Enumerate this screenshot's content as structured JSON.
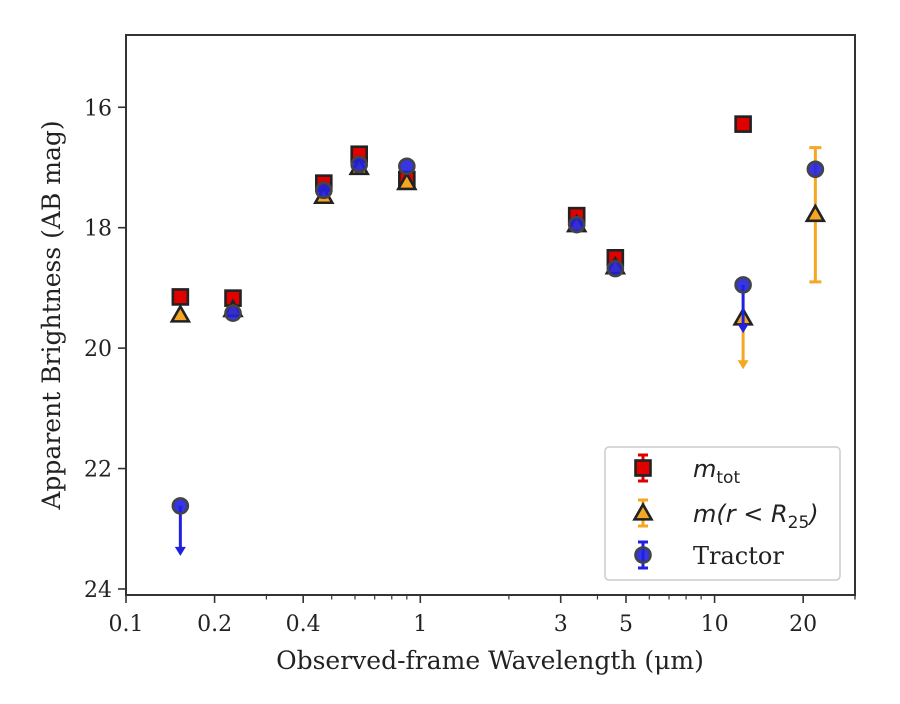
{
  "chart_data": {
    "type": "scatter",
    "title": "",
    "xlabel": "Observed-frame Wavelength (μm)",
    "ylabel": "Apparent Brightness (AB mag)",
    "x_scale": "log",
    "y_inverted": true,
    "xlim": [
      0.1,
      30
    ],
    "ylim": [
      24.1,
      14.8
    ],
    "x_ticks": [
      0.1,
      0.2,
      0.4,
      1,
      3,
      5,
      10,
      20
    ],
    "x_tick_labels": [
      "0.1",
      "0.2",
      "0.4",
      "1",
      "3",
      "5",
      "10",
      "20"
    ],
    "y_ticks": [
      16,
      18,
      20,
      22,
      24
    ],
    "y_tick_labels": [
      "16",
      "18",
      "20",
      "22",
      "24"
    ],
    "grid": false,
    "legend_position": "bottom-right",
    "legend": [
      {
        "label_main": "m",
        "label_sub": "tot",
        "color": "#e00000",
        "marker": "square"
      },
      {
        "label_main": "m(r < R",
        "label_sub": "25",
        "label_tail": ")",
        "color": "#f5a623",
        "marker": "triangle"
      },
      {
        "label_main": "Tractor",
        "color": "#2020e0",
        "marker": "circle"
      }
    ],
    "series": [
      {
        "name": "m_tot",
        "marker": "square",
        "color": "#e00000",
        "points": [
          {
            "x": 0.153,
            "y": 19.15
          },
          {
            "x": 0.231,
            "y": 19.17
          },
          {
            "x": 0.47,
            "y": 17.26
          },
          {
            "x": 0.62,
            "y": 16.78
          },
          {
            "x": 0.9,
            "y": 17.2
          },
          {
            "x": 3.4,
            "y": 17.8
          },
          {
            "x": 4.6,
            "y": 18.5
          },
          {
            "x": 12.5,
            "y": 16.28
          }
        ]
      },
      {
        "name": "m(r < R25)",
        "marker": "triangle",
        "color": "#f5a623",
        "points": [
          {
            "x": 0.153,
            "y": 19.45
          },
          {
            "x": 0.231,
            "y": 19.36
          },
          {
            "x": 0.47,
            "y": 17.48
          },
          {
            "x": 0.62,
            "y": 17.0
          },
          {
            "x": 0.9,
            "y": 17.25
          },
          {
            "x": 3.4,
            "y": 17.95
          },
          {
            "x": 4.6,
            "y": 18.65
          },
          {
            "x": 12.5,
            "y": 19.5,
            "upper_limit_to": 20.35
          },
          {
            "x": 22.0,
            "y": 17.78,
            "err_low": 16.67,
            "err_high": 18.9
          }
        ]
      },
      {
        "name": "Tractor",
        "marker": "circle",
        "color": "#2020e0",
        "points": [
          {
            "x": 0.153,
            "y": 22.62,
            "upper_limit_to": 23.45
          },
          {
            "x": 0.231,
            "y": 19.42
          },
          {
            "x": 0.47,
            "y": 17.38
          },
          {
            "x": 0.62,
            "y": 16.95
          },
          {
            "x": 0.9,
            "y": 16.98
          },
          {
            "x": 3.4,
            "y": 17.95
          },
          {
            "x": 4.6,
            "y": 18.68
          },
          {
            "x": 12.5,
            "y": 18.95,
            "upper_limit_to": 19.75
          },
          {
            "x": 22.0,
            "y": 17.03
          }
        ]
      }
    ]
  }
}
